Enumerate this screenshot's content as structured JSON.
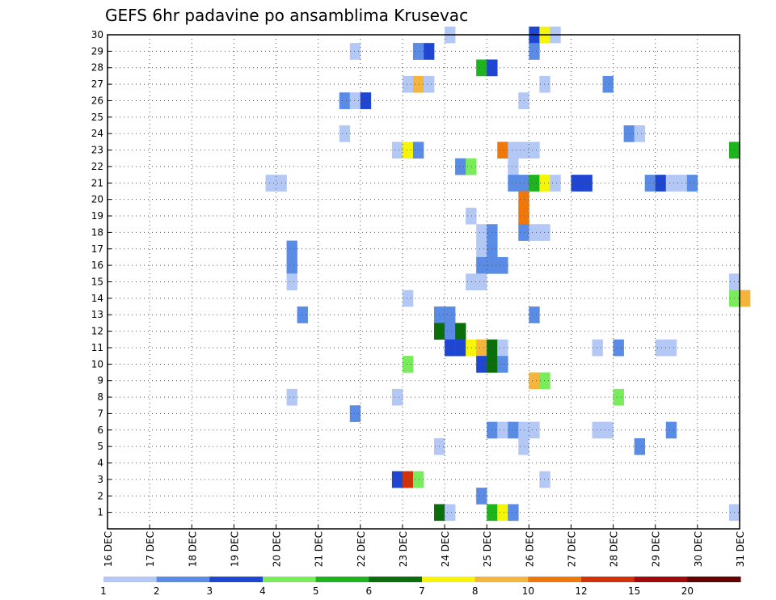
{
  "chart_data": {
    "type": "heatmap",
    "title": "GEFS 6hr padavine po ansamblima Krusevac",
    "xlabel": "",
    "ylabel": "",
    "x_tick_labels": [
      "16 DEC",
      "17 DEC",
      "18 DEC",
      "19 DEC",
      "20 DEC",
      "21 DEC",
      "22 DEC",
      "23 DEC",
      "24 DEC",
      "25 DEC",
      "26 DEC",
      "27 DEC",
      "28 DEC",
      "29 DEC",
      "30 DEC",
      "31 DEC"
    ],
    "y_tick_labels": [
      "1",
      "2",
      "3",
      "4",
      "5",
      "6",
      "7",
      "8",
      "9",
      "10",
      "11",
      "12",
      "13",
      "14",
      "15",
      "16",
      "17",
      "18",
      "19",
      "20",
      "21",
      "22",
      "23",
      "24",
      "25",
      "26",
      "27",
      "28",
      "29",
      "30"
    ],
    "xlim": [
      0,
      60
    ],
    "ylim": [
      0,
      30
    ],
    "x_unit": "6-hour step from 16 DEC 00Z",
    "grid": true,
    "colorbar": {
      "levels": [
        "1",
        "2",
        "3",
        "4",
        "5",
        "6",
        "7",
        "8",
        "10",
        "12",
        "15",
        "20"
      ],
      "colors": [
        "#b4c8f5",
        "#5a8ce6",
        "#1e46d2",
        "#78ec5a",
        "#1eb41e",
        "#0a6e0a",
        "#f5f50a",
        "#f5b43c",
        "#f0780a",
        "#d2320a",
        "#a00a0a",
        "#640000"
      ]
    },
    "cells": [
      {
        "member": 30,
        "step": 40,
        "class": 3
      },
      {
        "member": 30,
        "step": 41,
        "class": 7
      },
      {
        "member": 30,
        "step": 42,
        "class": 1
      },
      {
        "member": 30,
        "step": 32,
        "class": 1
      },
      {
        "member": 29,
        "step": 29,
        "class": 2
      },
      {
        "member": 29,
        "step": 30,
        "class": 3
      },
      {
        "member": 29,
        "step": 40,
        "class": 2
      },
      {
        "member": 29,
        "step": 29,
        "class": 2
      },
      {
        "member": 29,
        "step": 23,
        "class": 1
      },
      {
        "member": 28,
        "step": 35,
        "class": 5
      },
      {
        "member": 28,
        "step": 36,
        "class": 3
      },
      {
        "member": 27,
        "step": 28,
        "class": 1
      },
      {
        "member": 27,
        "step": 29,
        "class": 8
      },
      {
        "member": 27,
        "step": 30,
        "class": 1
      },
      {
        "member": 27,
        "step": 41,
        "class": 1
      },
      {
        "member": 27,
        "step": 47,
        "class": 2
      },
      {
        "member": 26,
        "step": 22,
        "class": 2
      },
      {
        "member": 26,
        "step": 23,
        "class": 1
      },
      {
        "member": 26,
        "step": 24,
        "class": 3
      },
      {
        "member": 26,
        "step": 39,
        "class": 1
      },
      {
        "member": 24,
        "step": 22,
        "class": 1
      },
      {
        "member": 24,
        "step": 49,
        "class": 2
      },
      {
        "member": 24,
        "step": 50,
        "class": 1
      },
      {
        "member": 23,
        "step": 27,
        "class": 1
      },
      {
        "member": 23,
        "step": 28,
        "class": 7
      },
      {
        "member": 23,
        "step": 29,
        "class": 2
      },
      {
        "member": 23,
        "step": 37,
        "class": 9
      },
      {
        "member": 23,
        "step": 38,
        "class": 1
      },
      {
        "member": 23,
        "step": 39,
        "class": 1
      },
      {
        "member": 23,
        "step": 40,
        "class": 1
      },
      {
        "member": 23,
        "step": 59,
        "class": 5
      },
      {
        "member": 22,
        "step": 33,
        "class": 2
      },
      {
        "member": 22,
        "step": 34,
        "class": 4
      },
      {
        "member": 22,
        "step": 38,
        "class": 1
      },
      {
        "member": 21,
        "step": 15,
        "class": 1
      },
      {
        "member": 21,
        "step": 16,
        "class": 1
      },
      {
        "member": 21,
        "step": 38,
        "class": 2
      },
      {
        "member": 21,
        "step": 39,
        "class": 2
      },
      {
        "member": 21,
        "step": 40,
        "class": 5
      },
      {
        "member": 21,
        "step": 41,
        "class": 7
      },
      {
        "member": 21,
        "step": 42,
        "class": 1
      },
      {
        "member": 21,
        "step": 44,
        "class": 3
      },
      {
        "member": 21,
        "step": 45,
        "class": 3
      },
      {
        "member": 21,
        "step": 51,
        "class": 2
      },
      {
        "member": 21,
        "step": 52,
        "class": 3
      },
      {
        "member": 21,
        "step": 53,
        "class": 1
      },
      {
        "member": 21,
        "step": 54,
        "class": 1
      },
      {
        "member": 21,
        "step": 55,
        "class": 2
      },
      {
        "member": 20,
        "step": 39,
        "class": 9
      },
      {
        "member": 19,
        "step": 39,
        "class": 9
      },
      {
        "member": 19,
        "step": 34,
        "class": 1
      },
      {
        "member": 18,
        "step": 35,
        "class": 1
      },
      {
        "member": 18,
        "step": 36,
        "class": 2
      },
      {
        "member": 18,
        "step": 39,
        "class": 2
      },
      {
        "member": 18,
        "step": 40,
        "class": 1
      },
      {
        "member": 18,
        "step": 41,
        "class": 1
      },
      {
        "member": 17,
        "step": 35,
        "class": 1
      },
      {
        "member": 17,
        "step": 36,
        "class": 2
      },
      {
        "member": 17,
        "step": 17,
        "class": 2
      },
      {
        "member": 16,
        "step": 17,
        "class": 2
      },
      {
        "member": 16,
        "step": 35,
        "class": 2
      },
      {
        "member": 16,
        "step": 36,
        "class": 2
      },
      {
        "member": 16,
        "step": 37,
        "class": 2
      },
      {
        "member": 15,
        "step": 17,
        "class": 1
      },
      {
        "member": 15,
        "step": 34,
        "class": 1
      },
      {
        "member": 15,
        "step": 35,
        "class": 1
      },
      {
        "member": 15,
        "step": 59,
        "class": 1
      },
      {
        "member": 14,
        "step": 28,
        "class": 1
      },
      {
        "member": 14,
        "step": 59,
        "class": 4
      },
      {
        "member": 14,
        "step": 60,
        "class": 8
      },
      {
        "member": 13,
        "step": 18,
        "class": 2
      },
      {
        "member": 13,
        "step": 31,
        "class": 2
      },
      {
        "member": 13,
        "step": 32,
        "class": 2
      },
      {
        "member": 13,
        "step": 40,
        "class": 2
      },
      {
        "member": 12,
        "step": 31,
        "class": 6
      },
      {
        "member": 12,
        "step": 32,
        "class": 2
      },
      {
        "member": 12,
        "step": 33,
        "class": 6
      },
      {
        "member": 11,
        "step": 32,
        "class": 3
      },
      {
        "member": 11,
        "step": 33,
        "class": 3
      },
      {
        "member": 11,
        "step": 34,
        "class": 7
      },
      {
        "member": 11,
        "step": 35,
        "class": 8
      },
      {
        "member": 11,
        "step": 36,
        "class": 6
      },
      {
        "member": 11,
        "step": 37,
        "class": 1
      },
      {
        "member": 11,
        "step": 46,
        "class": 1
      },
      {
        "member": 11,
        "step": 48,
        "class": 2
      },
      {
        "member": 11,
        "step": 52,
        "class": 1
      },
      {
        "member": 11,
        "step": 53,
        "class": 1
      },
      {
        "member": 10,
        "step": 28,
        "class": 4
      },
      {
        "member": 10,
        "step": 35,
        "class": 3
      },
      {
        "member": 10,
        "step": 36,
        "class": 6
      },
      {
        "member": 10,
        "step": 37,
        "class": 2
      },
      {
        "member": 9,
        "step": 40,
        "class": 8
      },
      {
        "member": 9,
        "step": 41,
        "class": 4
      },
      {
        "member": 8,
        "step": 17,
        "class": 1
      },
      {
        "member": 8,
        "step": 27,
        "class": 1
      },
      {
        "member": 8,
        "step": 48,
        "class": 4
      },
      {
        "member": 7,
        "step": 23,
        "class": 2
      },
      {
        "member": 6,
        "step": 36,
        "class": 2
      },
      {
        "member": 6,
        "step": 37,
        "class": 1
      },
      {
        "member": 6,
        "step": 38,
        "class": 2
      },
      {
        "member": 6,
        "step": 39,
        "class": 1
      },
      {
        "member": 6,
        "step": 40,
        "class": 1
      },
      {
        "member": 6,
        "step": 46,
        "class": 1
      },
      {
        "member": 6,
        "step": 47,
        "class": 1
      },
      {
        "member": 6,
        "step": 53,
        "class": 2
      },
      {
        "member": 5,
        "step": 31,
        "class": 1
      },
      {
        "member": 5,
        "step": 39,
        "class": 1
      },
      {
        "member": 5,
        "step": 50,
        "class": 2
      },
      {
        "member": 3,
        "step": 27,
        "class": 3
      },
      {
        "member": 3,
        "step": 28,
        "class": 10
      },
      {
        "member": 3,
        "step": 29,
        "class": 4
      },
      {
        "member": 3,
        "step": 41,
        "class": 1
      },
      {
        "member": 2,
        "step": 35,
        "class": 2
      },
      {
        "member": 1,
        "step": 31,
        "class": 6
      },
      {
        "member": 1,
        "step": 32,
        "class": 1
      },
      {
        "member": 1,
        "step": 36,
        "class": 5
      },
      {
        "member": 1,
        "step": 37,
        "class": 7
      },
      {
        "member": 1,
        "step": 38,
        "class": 2
      },
      {
        "member": 1,
        "step": 59,
        "class": 1
      }
    ]
  }
}
